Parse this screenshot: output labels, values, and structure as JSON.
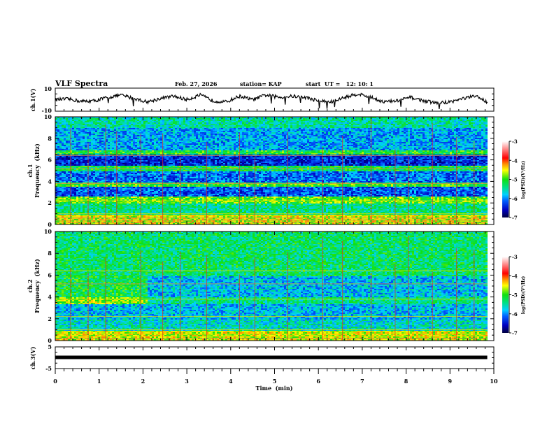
{
  "header": {
    "title": "VLF Spectra",
    "date": "Feb. 27, 2026",
    "station": "station= KAP",
    "start": "start  UT =   12: 10: 1"
  },
  "chart_data": [
    {
      "type": "line",
      "name": "ch1-waveform",
      "ylabel": "ch.1(V)",
      "ylim": [
        -10,
        10
      ],
      "ytick_labels": [
        "10",
        "-10"
      ],
      "xlim": [
        0,
        10
      ],
      "data_end_min": 9.85,
      "series": [
        {
          "name": "ch.1",
          "x": [
            0,
            0.3,
            0.6,
            0.9,
            1.2,
            1.5,
            1.8,
            2.1,
            2.4,
            2.7,
            3.0,
            3.3,
            3.6,
            3.9,
            4.2,
            4.5,
            4.8,
            5.1,
            5.4,
            5.7,
            6.0,
            6.3,
            6.6,
            6.9,
            7.2,
            7.5,
            7.8,
            8.1,
            8.4,
            8.7,
            9.0,
            9.3,
            9.6,
            9.85
          ],
          "values": [
            0,
            0.5,
            -1.5,
            -1,
            2,
            4,
            1,
            -2,
            1,
            3,
            0,
            4,
            -1,
            -2,
            3,
            0,
            4,
            2,
            3,
            2,
            -1,
            -2,
            2,
            5,
            2,
            -2,
            -1,
            2,
            -1,
            -3,
            -2,
            1,
            3,
            -2
          ]
        }
      ]
    },
    {
      "type": "heatmap",
      "name": "ch1-spectrogram",
      "ylabel_line1": "ch.1",
      "ylabel_line2": "Frequency  (kHz)",
      "ylim": [
        0,
        10
      ],
      "ytick_labels": [
        "0",
        "2",
        "4",
        "6",
        "8",
        "10"
      ],
      "xlim": [
        0,
        10
      ],
      "colorbar": {
        "label": "log(PSD)(V²/Hz)",
        "range": [
          -7,
          -3
        ],
        "tick_labels": [
          "-3",
          "-4",
          "-5",
          "-6",
          "-7"
        ]
      },
      "bands_khz": [
        {
          "from": 0,
          "to": 1,
          "level": -4.6
        },
        {
          "from": 1,
          "to": 2,
          "level": -5.4
        },
        {
          "from": 2,
          "to": 2.6,
          "level": -4.9
        },
        {
          "from": 2.6,
          "to": 3.6,
          "level": -6.2
        },
        {
          "from": 3.6,
          "to": 4,
          "level": -5.0
        },
        {
          "from": 4,
          "to": 5,
          "level": -6.1
        },
        {
          "from": 5,
          "to": 5.5,
          "level": -5.2
        },
        {
          "from": 5.5,
          "to": 6.5,
          "level": -6.4
        },
        {
          "from": 6.5,
          "to": 7,
          "level": -5.1
        },
        {
          "from": 7,
          "to": 9,
          "level": -5.9
        },
        {
          "from": 9,
          "to": 10,
          "level": -5.5
        }
      ],
      "impulses_min": [
        0.35,
        0.75,
        1.15,
        1.4,
        1.95,
        2.45,
        2.85,
        3.45,
        4.2,
        4.55,
        5.3,
        6.1,
        6.55,
        7.2,
        7.75,
        8.05,
        8.6,
        9.15,
        9.55
      ]
    },
    {
      "type": "heatmap",
      "name": "ch2-spectrogram",
      "ylabel_line1": "ch.2",
      "ylabel_line2": "Frequency  (kHz)",
      "ylim": [
        0,
        10
      ],
      "ytick_labels": [
        "0",
        "2",
        "4",
        "6",
        "8",
        "10"
      ],
      "xlim": [
        0,
        10
      ],
      "colorbar": {
        "label": "log(PSD)(V²/Hz)",
        "range": [
          -7,
          -3
        ],
        "tick_labels": [
          "-3",
          "-4",
          "-5",
          "-6",
          "-7"
        ]
      },
      "bands_khz": [
        {
          "from": 0,
          "to": 1,
          "level": -4.6
        },
        {
          "from": 1,
          "to": 2,
          "level": -5.6
        },
        {
          "from": 2,
          "to": 3.4,
          "level": -5.8
        },
        {
          "from": 3.4,
          "to": 4,
          "level": -4.8
        },
        {
          "from": 4,
          "to": 6,
          "level": -5.2
        },
        {
          "from": 6,
          "to": 10,
          "level": -5.3
        }
      ],
      "impulses_min": [
        0.35,
        0.75,
        1.15,
        1.95,
        2.45,
        2.85,
        3.45,
        4.2,
        4.55,
        5.3,
        6.1,
        6.55,
        7.2,
        7.75,
        8.05,
        8.6,
        9.15,
        9.55
      ]
    },
    {
      "type": "line",
      "name": "ch3-waveform",
      "ylabel": "ch.3(V)",
      "ylim": [
        -5,
        5
      ],
      "ytick_labels": [
        "5",
        "-5"
      ],
      "xlim": [
        0,
        10
      ],
      "series": [
        {
          "name": "ch.3",
          "x": [
            0,
            9.85
          ],
          "values": [
            0,
            0
          ]
        }
      ]
    }
  ],
  "xaxis": {
    "label": "Time  (min)",
    "tick_labels": [
      "0",
      "1",
      "2",
      "3",
      "4",
      "5",
      "6",
      "7",
      "8",
      "9",
      "10"
    ]
  }
}
